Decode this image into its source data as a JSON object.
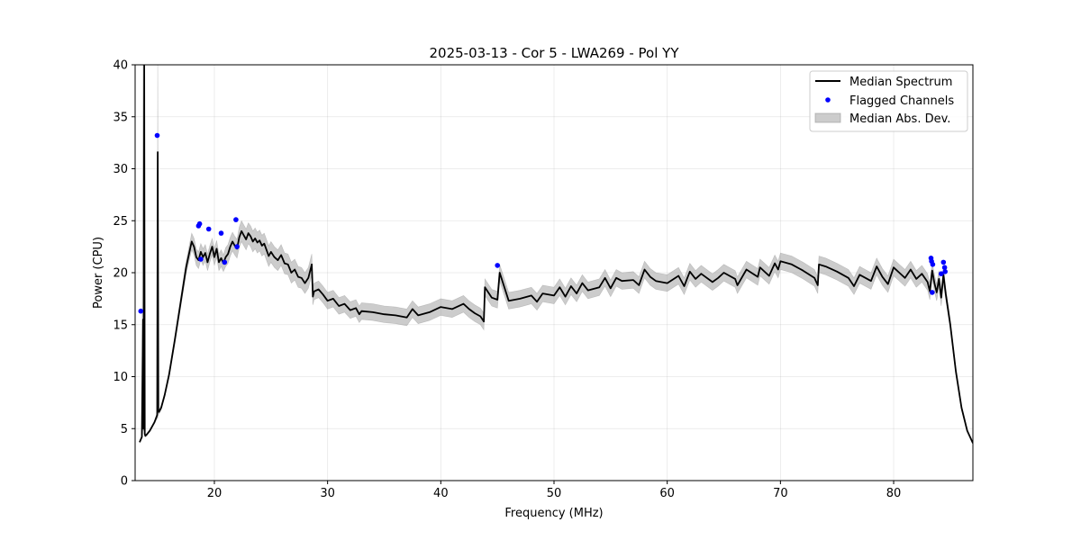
{
  "chart_data": {
    "type": "line",
    "title": "2025-03-13 - Cor 5 - LWA269 - Pol YY",
    "xlabel": "Frequency (MHz)",
    "ylabel": "Power (CPU)",
    "xlim": [
      13,
      87
    ],
    "ylim": [
      0,
      40
    ],
    "xticks": [
      20,
      30,
      40,
      50,
      60,
      70,
      80
    ],
    "yticks": [
      0,
      5,
      10,
      15,
      20,
      25,
      30,
      35,
      40
    ],
    "grid": true,
    "legend_position": "top-right",
    "colors": {
      "median_line": "#000000",
      "flagged_points": "#0000ff",
      "mad_band": "#999999"
    },
    "series": [
      {
        "name": "Median Spectrum",
        "kind": "line",
        "x": [
          13.4,
          13.6,
          13.7,
          13.75,
          13.8,
          13.85,
          13.9,
          14.0,
          14.3,
          14.7,
          14.95,
          15.0,
          15.05,
          15.1,
          15.3,
          15.6,
          16.0,
          16.5,
          17.0,
          17.5,
          17.8,
          18.0,
          18.2,
          18.4,
          18.6,
          18.8,
          19.0,
          19.2,
          19.4,
          19.6,
          19.8,
          20.0,
          20.2,
          20.4,
          20.6,
          20.8,
          21.0,
          21.2,
          21.4,
          21.6,
          21.8,
          22.0,
          22.2,
          22.4,
          22.6,
          22.8,
          23.0,
          23.2,
          23.4,
          23.6,
          23.8,
          24.0,
          24.2,
          24.4,
          24.6,
          24.8,
          25.0,
          25.3,
          25.6,
          25.9,
          26.2,
          26.5,
          26.8,
          27.1,
          27.4,
          27.7,
          28.0,
          28.3,
          28.6,
          28.7,
          28.8,
          29.2,
          29.6,
          30.0,
          30.5,
          31.0,
          31.5,
          32.0,
          32.5,
          32.8,
          33.0,
          34.0,
          35.0,
          36.0,
          37.0,
          37.5,
          38.0,
          39.0,
          40.0,
          41.0,
          42.0,
          42.5,
          43.0,
          43.5,
          43.8,
          43.9,
          44.5,
          45.0,
          45.2,
          46.0,
          47.0,
          48.0,
          48.5,
          49.0,
          50.0,
          50.5,
          51.0,
          51.5,
          52.0,
          52.5,
          53.0,
          54.0,
          54.5,
          55.0,
          55.5,
          56.0,
          57.0,
          57.5,
          58.0,
          58.5,
          59.0,
          60.0,
          61.0,
          61.5,
          62.0,
          62.5,
          63.0,
          64.0,
          64.5,
          65.0,
          66.0,
          66.2,
          67.0,
          68.0,
          68.2,
          69.0,
          69.5,
          69.8,
          70.0,
          71.0,
          72.0,
          73.0,
          73.3,
          73.4,
          74.0,
          75.0,
          76.0,
          76.5,
          77.0,
          78.0,
          78.5,
          79.0,
          79.5,
          80.0,
          80.5,
          81.0,
          81.5,
          82.0,
          82.5,
          83.0,
          83.2,
          83.4,
          83.6,
          83.8,
          84.0,
          84.2,
          84.4,
          84.6,
          85.0,
          85.5,
          86.0,
          86.5,
          87.0
        ],
        "y": [
          3.7,
          4.2,
          15.5,
          5.0,
          40.0,
          4.5,
          4.3,
          4.4,
          4.8,
          5.6,
          6.3,
          31.6,
          6.8,
          6.6,
          7.0,
          8.2,
          10.2,
          13.5,
          17.0,
          20.5,
          22.0,
          23.0,
          22.5,
          21.5,
          21.2,
          22.0,
          21.5,
          21.9,
          21.0,
          21.8,
          22.5,
          21.5,
          22.3,
          21.0,
          21.4,
          20.9,
          21.5,
          21.8,
          22.5,
          23.0,
          22.6,
          22.3,
          23.4,
          24.0,
          23.6,
          23.2,
          23.8,
          23.5,
          23.0,
          23.3,
          22.9,
          23.1,
          22.6,
          22.8,
          22.2,
          21.6,
          22.0,
          21.5,
          21.2,
          21.7,
          20.9,
          20.8,
          20.0,
          20.3,
          19.6,
          19.5,
          19.0,
          19.5,
          20.8,
          17.7,
          18.2,
          18.4,
          17.9,
          17.3,
          17.5,
          16.8,
          17.0,
          16.4,
          16.6,
          16.0,
          16.3,
          16.2,
          16.0,
          15.9,
          15.7,
          16.5,
          15.9,
          16.2,
          16.7,
          16.5,
          17.0,
          16.5,
          16.1,
          15.8,
          15.3,
          18.6,
          17.6,
          17.4,
          20.0,
          17.3,
          17.5,
          17.8,
          17.2,
          18.0,
          17.8,
          18.6,
          17.7,
          18.7,
          18.0,
          19.0,
          18.3,
          18.6,
          19.5,
          18.5,
          19.5,
          19.2,
          19.3,
          18.8,
          20.3,
          19.6,
          19.2,
          19.0,
          19.7,
          18.7,
          20.1,
          19.4,
          19.9,
          19.1,
          19.5,
          20.0,
          19.4,
          18.8,
          20.3,
          19.6,
          20.5,
          19.7,
          20.9,
          20.3,
          21.1,
          20.8,
          20.2,
          19.5,
          18.8,
          20.8,
          20.6,
          20.1,
          19.5,
          18.7,
          19.8,
          19.2,
          20.6,
          19.6,
          18.9,
          20.5,
          20.0,
          19.5,
          20.3,
          19.4,
          19.9,
          19.1,
          18.2,
          20.2,
          19.0,
          18.1,
          19.4,
          17.6,
          19.8,
          18.0,
          15.0,
          10.5,
          7.0,
          4.8,
          3.6
        ]
      },
      {
        "name": "Flagged Channels",
        "kind": "scatter",
        "x": [
          13.5,
          14.95,
          18.6,
          18.7,
          18.8,
          19.5,
          20.6,
          20.9,
          21.9,
          22.0,
          45.0,
          83.3,
          83.35,
          83.4,
          83.45,
          84.2,
          84.4,
          84.5,
          84.55
        ],
        "y": [
          16.3,
          33.2,
          24.5,
          24.7,
          21.3,
          24.2,
          23.8,
          21.0,
          25.1,
          22.5,
          20.7,
          21.4,
          21.1,
          18.1,
          20.8,
          19.9,
          21.0,
          20.5,
          20.1
        ]
      },
      {
        "name": "Median Abs. Dev.",
        "kind": "band",
        "x": [
          13.4,
          13.6,
          13.7,
          13.75,
          13.8,
          13.85,
          13.9,
          14.0,
          14.3,
          14.7,
          14.95,
          15.0,
          15.05,
          15.1,
          15.3,
          15.6,
          16.0,
          16.5,
          17.0,
          17.5,
          17.8,
          18.0,
          18.2,
          18.4,
          18.6,
          18.8,
          19.0,
          19.2,
          19.4,
          19.6,
          19.8,
          20.0,
          20.2,
          20.4,
          20.6,
          20.8,
          21.0,
          21.2,
          21.4,
          21.6,
          21.8,
          22.0,
          22.2,
          22.4,
          22.6,
          22.8,
          23.0,
          23.2,
          23.4,
          23.6,
          23.8,
          24.0,
          24.2,
          24.4,
          24.6,
          24.8,
          25.0,
          25.3,
          25.6,
          25.9,
          26.2,
          26.5,
          26.8,
          27.1,
          27.4,
          27.7,
          28.0,
          28.3,
          28.6,
          28.7,
          28.8,
          29.2,
          29.6,
          30.0,
          30.5,
          31.0,
          31.5,
          32.0,
          32.5,
          32.8,
          33.0,
          34.0,
          35.0,
          36.0,
          37.0,
          37.5,
          38.0,
          39.0,
          40.0,
          41.0,
          42.0,
          42.5,
          43.0,
          43.5,
          43.8,
          43.9,
          44.5,
          45.0,
          45.2,
          46.0,
          47.0,
          48.0,
          48.5,
          49.0,
          50.0,
          50.5,
          51.0,
          51.5,
          52.0,
          52.5,
          53.0,
          54.0,
          54.5,
          55.0,
          55.5,
          56.0,
          57.0,
          57.5,
          58.0,
          58.5,
          59.0,
          60.0,
          61.0,
          61.5,
          62.0,
          62.5,
          63.0,
          64.0,
          64.5,
          65.0,
          66.0,
          66.2,
          67.0,
          68.0,
          68.2,
          69.0,
          69.5,
          69.8,
          70.0,
          71.0,
          72.0,
          73.0,
          73.3,
          73.4,
          74.0,
          75.0,
          76.0,
          76.5,
          77.0,
          78.0,
          78.5,
          79.0,
          79.5,
          80.0,
          80.5,
          81.0,
          81.5,
          82.0,
          82.5,
          83.0,
          83.2,
          83.4,
          83.6,
          83.8,
          84.0,
          84.2,
          84.4,
          84.6,
          85.0,
          85.5,
          86.0,
          86.5,
          87.0
        ],
        "lower": [
          3.6,
          4.1,
          5.0,
          4.8,
          4.8,
          4.4,
          4.2,
          4.3,
          4.7,
          5.5,
          6.0,
          6.0,
          6.5,
          6.4,
          6.8,
          8.0,
          9.9,
          13.1,
          16.5,
          19.9,
          21.3,
          22.2,
          21.7,
          20.7,
          20.4,
          21.2,
          20.7,
          21.1,
          20.2,
          21.0,
          21.7,
          20.7,
          21.5,
          20.2,
          20.6,
          20.1,
          20.6,
          20.9,
          21.6,
          22.1,
          21.7,
          21.4,
          22.4,
          23.0,
          22.6,
          22.2,
          22.8,
          22.5,
          22.0,
          22.3,
          21.9,
          22.1,
          21.6,
          21.8,
          21.2,
          20.6,
          21.0,
          20.5,
          20.2,
          20.7,
          19.9,
          19.8,
          19.0,
          19.3,
          18.6,
          18.5,
          18.0,
          18.5,
          19.8,
          16.9,
          17.4,
          17.6,
          17.1,
          16.5,
          16.7,
          16.0,
          16.2,
          15.6,
          15.8,
          15.2,
          15.5,
          15.4,
          15.2,
          15.1,
          14.9,
          15.7,
          15.1,
          15.4,
          15.9,
          15.7,
          16.2,
          15.7,
          15.3,
          15.0,
          14.5,
          17.8,
          16.8,
          16.6,
          19.2,
          16.5,
          16.7,
          17.0,
          16.4,
          17.2,
          17.0,
          17.8,
          16.9,
          17.9,
          17.2,
          18.2,
          17.5,
          17.8,
          18.7,
          17.7,
          18.7,
          18.4,
          18.5,
          18.0,
          19.5,
          18.8,
          18.4,
          18.2,
          18.9,
          17.9,
          19.3,
          18.6,
          19.1,
          18.3,
          18.7,
          19.2,
          18.6,
          18.0,
          19.5,
          18.8,
          19.7,
          18.9,
          20.1,
          19.5,
          20.3,
          20.0,
          19.4,
          18.7,
          18.0,
          20.0,
          19.8,
          19.3,
          18.7,
          17.9,
          19.0,
          18.4,
          19.8,
          18.8,
          18.1,
          19.7,
          19.2,
          18.7,
          19.5,
          18.6,
          19.1,
          18.3,
          17.4,
          19.4,
          18.2,
          17.3,
          18.6,
          16.8,
          19.0,
          17.4,
          14.6,
          10.2,
          6.8,
          4.7,
          3.5
        ],
        "upper": [
          3.8,
          4.3,
          40.0,
          5.2,
          40.0,
          4.6,
          4.4,
          4.5,
          4.9,
          5.7,
          6.6,
          40.0,
          7.1,
          6.8,
          7.2,
          8.4,
          10.5,
          13.9,
          17.5,
          21.1,
          22.7,
          23.8,
          23.3,
          22.3,
          22.0,
          22.8,
          22.3,
          22.7,
          21.8,
          22.6,
          23.3,
          22.3,
          23.1,
          21.8,
          22.2,
          21.7,
          22.4,
          22.7,
          23.4,
          23.9,
          23.5,
          23.2,
          24.4,
          25.0,
          24.6,
          24.2,
          24.8,
          24.5,
          24.0,
          24.3,
          23.9,
          24.1,
          23.6,
          23.8,
          23.2,
          22.6,
          23.0,
          22.5,
          22.2,
          22.7,
          21.9,
          21.8,
          21.0,
          21.3,
          20.6,
          20.5,
          20.0,
          20.5,
          21.8,
          18.5,
          19.0,
          19.2,
          18.7,
          18.1,
          18.3,
          17.6,
          17.8,
          17.2,
          17.4,
          16.8,
          17.1,
          17.0,
          16.8,
          16.7,
          16.5,
          17.3,
          16.7,
          17.0,
          17.5,
          17.3,
          17.8,
          17.3,
          16.9,
          16.6,
          16.1,
          19.4,
          18.4,
          18.2,
          20.8,
          18.1,
          18.3,
          18.6,
          18.0,
          18.8,
          18.6,
          19.4,
          18.5,
          19.5,
          18.8,
          19.8,
          19.1,
          19.4,
          20.3,
          19.3,
          20.3,
          20.0,
          20.1,
          19.6,
          21.1,
          20.4,
          20.0,
          19.8,
          20.5,
          19.5,
          20.9,
          20.2,
          20.7,
          19.9,
          20.3,
          20.8,
          20.2,
          19.6,
          21.1,
          20.4,
          21.3,
          20.5,
          21.7,
          21.1,
          21.9,
          21.6,
          21.0,
          20.3,
          19.6,
          21.6,
          21.4,
          20.9,
          20.3,
          19.5,
          20.6,
          20.0,
          21.4,
          20.4,
          19.7,
          21.3,
          20.8,
          20.3,
          21.1,
          20.2,
          20.7,
          19.9,
          19.0,
          21.0,
          19.8,
          18.9,
          20.2,
          18.4,
          20.6,
          18.6,
          15.4,
          10.8,
          7.2,
          4.9,
          3.7
        ]
      }
    ]
  }
}
